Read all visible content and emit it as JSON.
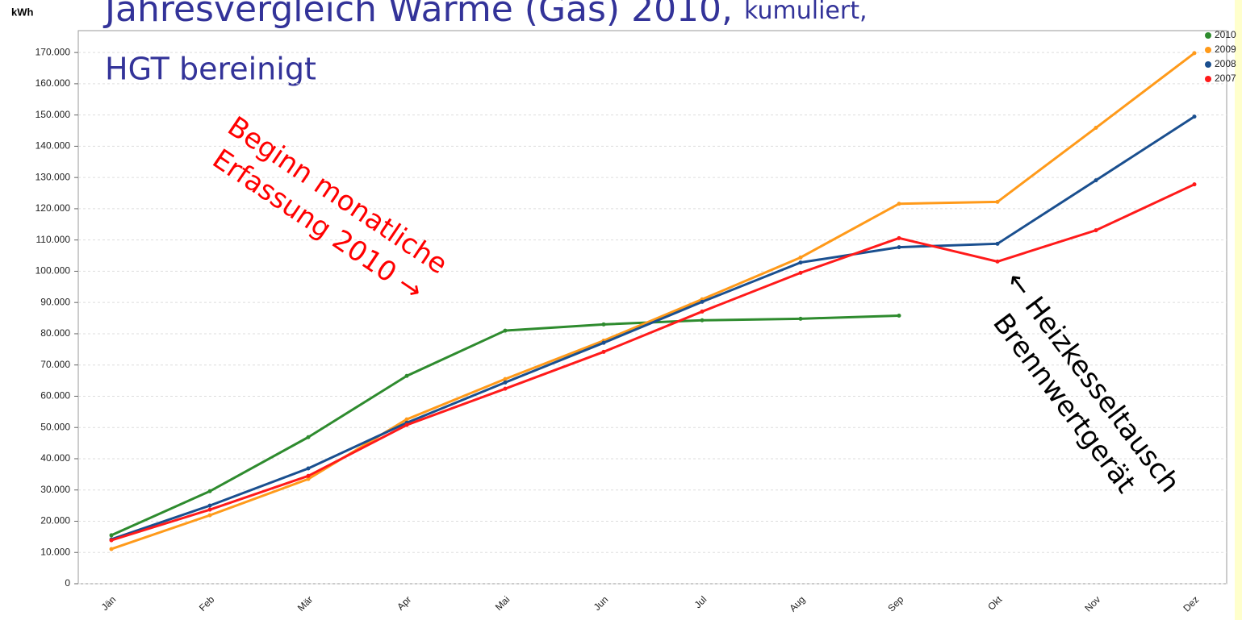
{
  "chart_data": {
    "type": "line",
    "title": "Jahresvergleich Wärme (Gas) 2010,",
    "title_suffix": "kumuliert,",
    "title_line2": "HGT bereinigt",
    "y_label": "kWh",
    "categories": [
      "Jän",
      "Feb",
      "Mär",
      "Apr",
      "Mai",
      "Jun",
      "Jul",
      "Aug",
      "Sep",
      "Okt",
      "Nov",
      "Dez"
    ],
    "series": [
      {
        "name": "2010",
        "color": "#2e8b2e",
        "values": [
          15500,
          29600,
          46900,
          66500,
          81000,
          83000,
          84300,
          84800,
          85800,
          null,
          null,
          null
        ]
      },
      {
        "name": "2009",
        "color": "#ff9a1a",
        "values": [
          11100,
          21900,
          33500,
          52600,
          65500,
          77800,
          91000,
          104400,
          121600,
          122200,
          145900,
          169800
        ]
      },
      {
        "name": "2008",
        "color": "#1a4f8f",
        "values": [
          14200,
          25000,
          36900,
          51500,
          64400,
          77100,
          90200,
          102800,
          107700,
          108800,
          129100,
          149500
        ]
      },
      {
        "name": "2007",
        "color": "#ff1a1a",
        "values": [
          13900,
          23700,
          34500,
          50800,
          62400,
          74200,
          87100,
          99500,
          110600,
          103100,
          113100,
          127800
        ]
      }
    ],
    "ylim": [
      0,
      177000
    ],
    "yticks": [
      0,
      {
        "value": 10000,
        "label": "10.000"
      },
      {
        "value": 20000,
        "label": "20.000"
      },
      {
        "value": 30000,
        "label": "30.000"
      },
      {
        "value": 40000,
        "label": "40.000"
      },
      {
        "value": 50000,
        "label": "50.000"
      },
      {
        "value": 60000,
        "label": "60.000"
      },
      {
        "value": 70000,
        "label": "70.000"
      },
      {
        "value": 80000,
        "label": "80.000"
      },
      {
        "value": 90000,
        "label": "90.000"
      },
      {
        "value": 100000,
        "label": "100.000"
      },
      {
        "value": 110000,
        "label": "110.000"
      },
      {
        "value": 120000,
        "label": "120.000"
      },
      {
        "value": 130000,
        "label": "130.000"
      },
      {
        "value": 140000,
        "label": "140.000"
      },
      {
        "value": 150000,
        "label": "150.000"
      },
      {
        "value": 160000,
        "label": "160.000"
      },
      {
        "value": 170000,
        "label": "170.000"
      }
    ],
    "grid": true,
    "legend": "top-right",
    "annotations": [
      {
        "lines": [
          "Beginn monatliche",
          "Erfassung 2010 →"
        ],
        "color": "#ff0000"
      },
      {
        "lines": [
          "← Heizkesseltausch",
          "Brennwertgerät"
        ],
        "color": "#000000"
      }
    ]
  }
}
